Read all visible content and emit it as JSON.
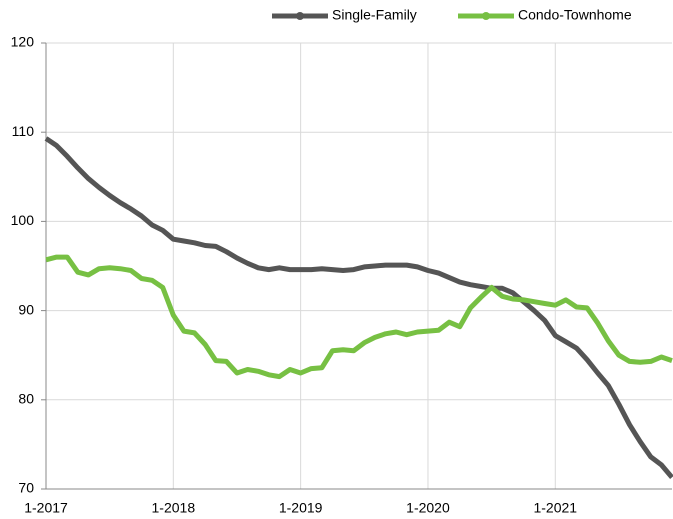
{
  "chart_data": {
    "type": "line",
    "categories": [
      "1-2017",
      null,
      null,
      null,
      null,
      null,
      null,
      null,
      null,
      null,
      null,
      null,
      "1-2018",
      null,
      null,
      null,
      null,
      null,
      null,
      null,
      null,
      null,
      null,
      null,
      "1-2019",
      null,
      null,
      null,
      null,
      null,
      null,
      null,
      null,
      null,
      null,
      null,
      "1-2020",
      null,
      null,
      null,
      null,
      null,
      null,
      null,
      null,
      null,
      null,
      null,
      "1-2021",
      null,
      null,
      null,
      null,
      null,
      null,
      null,
      null,
      null,
      null,
      null
    ],
    "series": [
      {
        "name": "Single-Family",
        "color": "#555555",
        "values": [
          109.3,
          108.5,
          107.3,
          106.0,
          104.8,
          103.8,
          102.9,
          102.1,
          101.4,
          100.6,
          99.6,
          99.0,
          98.0,
          97.8,
          97.6,
          97.3,
          97.2,
          96.6,
          95.9,
          95.3,
          94.8,
          94.6,
          94.8,
          94.6,
          94.6,
          94.6,
          94.7,
          94.6,
          94.5,
          94.6,
          94.9,
          95.0,
          95.1,
          95.1,
          95.1,
          94.9,
          94.5,
          94.2,
          93.7,
          93.2,
          92.9,
          92.7,
          92.5,
          92.5,
          92.0,
          91.0,
          90.0,
          88.9,
          87.2,
          86.5,
          85.8,
          84.5,
          83.0,
          81.6,
          79.5,
          77.2,
          75.3,
          73.6,
          72.7,
          71.3
        ]
      },
      {
        "name": "Condo-Townhome",
        "color": "#77c043",
        "values": [
          95.7,
          96.0,
          96.0,
          94.3,
          94.0,
          94.7,
          94.8,
          94.7,
          94.5,
          93.6,
          93.4,
          92.6,
          89.5,
          87.7,
          87.5,
          86.2,
          84.4,
          84.3,
          83.0,
          83.4,
          83.2,
          82.8,
          82.6,
          83.4,
          83.0,
          83.5,
          83.6,
          85.5,
          85.6,
          85.5,
          86.4,
          87.0,
          87.4,
          87.6,
          87.3,
          87.6,
          87.7,
          87.8,
          88.7,
          88.2,
          90.3,
          91.5,
          92.6,
          91.6,
          91.3,
          91.2,
          91.0,
          90.8,
          90.6,
          91.2,
          90.4,
          90.3,
          88.6,
          86.6,
          85.0,
          84.3,
          84.2,
          84.3,
          84.8,
          84.4
        ]
      }
    ],
    "ylim": [
      70,
      120
    ],
    "yticks": [
      70,
      80,
      90,
      100,
      110,
      120
    ],
    "grid": true,
    "legend": "top-right"
  }
}
